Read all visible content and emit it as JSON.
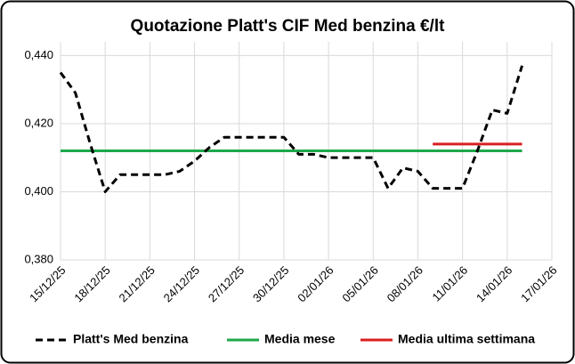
{
  "chart_data": {
    "type": "line",
    "title": "Quotazione Platt's CIF Med benzina €/lt",
    "x": [
      "15/12/25",
      "16/12/25",
      "17/12/25",
      "18/12/25",
      "19/12/25",
      "20/12/25",
      "21/12/25",
      "22/12/25",
      "23/12/25",
      "24/12/25",
      "25/12/25",
      "26/12/25",
      "27/12/25",
      "28/12/25",
      "29/12/25",
      "30/12/25",
      "31/12/25",
      "01/01/26",
      "02/01/26",
      "03/01/26",
      "04/01/26",
      "05/01/26",
      "06/01/26",
      "07/01/26",
      "08/01/26",
      "09/01/26",
      "10/01/26",
      "11/01/26",
      "12/01/26",
      "13/01/26",
      "14/01/26",
      "15/01/26"
    ],
    "series": [
      {
        "name": "Platt's Med benzina",
        "color": "#000000",
        "dashed": true,
        "values": [
          0.435,
          0.429,
          0.414,
          0.4,
          0.405,
          0.405,
          0.405,
          0.405,
          0.406,
          0.409,
          0.413,
          0.416,
          0.416,
          0.416,
          0.416,
          0.416,
          0.411,
          0.411,
          0.41,
          0.41,
          0.41,
          0.41,
          0.401,
          0.407,
          0.406,
          0.401,
          0.401,
          0.401,
          0.412,
          0.424,
          0.423,
          0.437
        ]
      },
      {
        "name": "Media mese",
        "color": "#1fa84a",
        "dashed": false,
        "values": [
          0.412,
          0.412,
          0.412,
          0.412,
          0.412,
          0.412,
          0.412,
          0.412,
          0.412,
          0.412,
          0.412,
          0.412,
          0.412,
          0.412,
          0.412,
          0.412,
          0.412,
          0.412,
          0.412,
          0.412,
          0.412,
          0.412,
          0.412,
          0.412,
          0.412,
          0.412,
          0.412,
          0.412,
          0.412,
          0.412,
          0.412,
          0.412
        ]
      },
      {
        "name": "Media ultima settimana",
        "color": "#d92020",
        "dashed": false,
        "values": [
          null,
          null,
          null,
          null,
          null,
          null,
          null,
          null,
          null,
          null,
          null,
          null,
          null,
          null,
          null,
          null,
          null,
          null,
          null,
          null,
          null,
          null,
          null,
          null,
          null,
          0.414,
          0.414,
          0.414,
          0.414,
          0.414,
          0.414,
          0.414
        ]
      }
    ],
    "xlim": [
      "15/12/25",
      "17/01/26"
    ],
    "xticks": [
      "15/12/25",
      "18/12/25",
      "21/12/25",
      "24/12/25",
      "27/12/25",
      "30/12/25",
      "02/01/26",
      "05/01/26",
      "08/01/26",
      "11/01/26",
      "14/01/26",
      "17/01/26"
    ],
    "ylim": [
      0.38,
      0.444
    ],
    "yticks": [
      {
        "value": 0.38,
        "label": "0,380"
      },
      {
        "value": 0.4,
        "label": "0,400"
      },
      {
        "value": 0.42,
        "label": "0,420"
      },
      {
        "value": 0.44,
        "label": "0,440"
      }
    ],
    "grid": true,
    "legend": "bottom"
  }
}
